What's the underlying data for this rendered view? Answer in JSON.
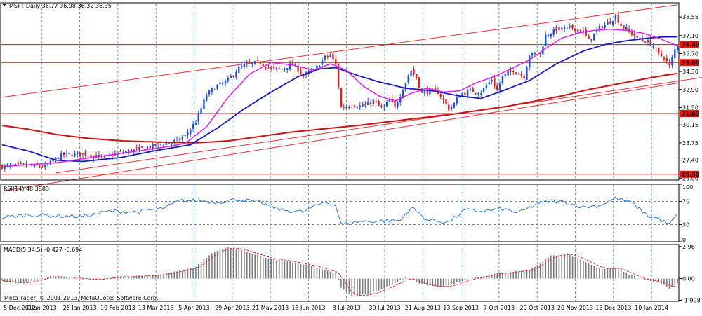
{
  "colors": {
    "bull": "#1d4fd8",
    "bear": "#e0201c",
    "ma_fast": "#e020e0",
    "ma_mid": "#1a1ab8",
    "ma_slow": "#cc1111",
    "channel": "#e03030",
    "level_line": "#d01010",
    "grid": "#2f7fd8",
    "rsi_line": "#1f6fd1",
    "macd_hist": "#7a7a7a",
    "macd_signal": "#e02020",
    "label_bg": "#e8140c"
  },
  "chart_data": [
    {
      "type": "candlestick",
      "title": "MSFT,Daily  36.77 36.98 36.32 36.35",
      "y_ticks": [
        "38.55",
        "37.10",
        "35.70",
        "34.30",
        "32.90",
        "31.50",
        "30.15",
        "28.75",
        "27.40",
        "26.00"
      ],
      "ylim": [
        25.85,
        39.65
      ],
      "x_labels": [
        "5 Dec 2012",
        "2 Jan 2013",
        "25 Jan 2013",
        "19 Feb 2013",
        "13 Mar 2013",
        "5 Apr 2013",
        "29 Apr 2013",
        "21 May 2013",
        "13 Jun 2013",
        "8 Jul 2013",
        "30 Jul 2013",
        "21 Aug 2013",
        "13 Sep 2013",
        "7 Oct 2013",
        "29 Oct 2013",
        "20 Nov 2013",
        "13 Dec 2013",
        "10 Jan 2014"
      ],
      "levels": [
        "36.40",
        "35.00",
        "31.03",
        "26.30"
      ],
      "price_anchors": [
        [
          0,
          26.9
        ],
        [
          8,
          27.0
        ],
        [
          16,
          26.9
        ],
        [
          22,
          27.8
        ],
        [
          30,
          27.9
        ],
        [
          38,
          27.6
        ],
        [
          44,
          28.0
        ],
        [
          50,
          28.2
        ],
        [
          60,
          28.7
        ],
        [
          65,
          28.9
        ],
        [
          68,
          29.3
        ],
        [
          72,
          30.4
        ],
        [
          76,
          32.5
        ],
        [
          80,
          33.2
        ],
        [
          84,
          33.6
        ],
        [
          88,
          34.6
        ],
        [
          92,
          34.9
        ],
        [
          96,
          35.0
        ],
        [
          100,
          34.5
        ],
        [
          104,
          34.5
        ],
        [
          108,
          34.9
        ],
        [
          112,
          34.0
        ],
        [
          116,
          34.4
        ],
        [
          120,
          35.4
        ],
        [
          122,
          35.6
        ],
        [
          124,
          34.8
        ],
        [
          126,
          31.5
        ],
        [
          130,
          31.7
        ],
        [
          134,
          31.6
        ],
        [
          138,
          32.0
        ],
        [
          140,
          31.6
        ],
        [
          142,
          31.5
        ],
        [
          144,
          32.1
        ],
        [
          146,
          31.5
        ],
        [
          150,
          33.5
        ],
        [
          152,
          34.4
        ],
        [
          154,
          33.8
        ],
        [
          156,
          32.6
        ],
        [
          158,
          32.8
        ],
        [
          162,
          32.7
        ],
        [
          166,
          31.4
        ],
        [
          168,
          31.8
        ],
        [
          170,
          32.5
        ],
        [
          174,
          32.8
        ],
        [
          178,
          32.7
        ],
        [
          182,
          33.7
        ],
        [
          184,
          32.8
        ],
        [
          186,
          33.9
        ],
        [
          190,
          34.4
        ],
        [
          194,
          33.9
        ],
        [
          196,
          35.6
        ],
        [
          200,
          35.7
        ],
        [
          202,
          37.1
        ],
        [
          206,
          37.6
        ],
        [
          208,
          37.6
        ],
        [
          212,
          37.7
        ],
        [
          216,
          37.4
        ],
        [
          218,
          36.7
        ],
        [
          222,
          37.7
        ],
        [
          226,
          38.2
        ],
        [
          228,
          38.6
        ],
        [
          230,
          37.9
        ],
        [
          232,
          37.6
        ],
        [
          236,
          36.9
        ],
        [
          240,
          36.6
        ],
        [
          242,
          36.3
        ],
        [
          244,
          35.6
        ],
        [
          246,
          35.4
        ],
        [
          248,
          34.7
        ],
        [
          250,
          36.0
        ],
        [
          251,
          36.4
        ]
      ],
      "ma_fast_anchors": [
        [
          0,
          26.9
        ],
        [
          20,
          27.2
        ],
        [
          40,
          27.8
        ],
        [
          60,
          28.4
        ],
        [
          68,
          28.7
        ],
        [
          76,
          30.0
        ],
        [
          84,
          32.3
        ],
        [
          92,
          34.1
        ],
        [
          100,
          35.0
        ],
        [
          108,
          34.8
        ],
        [
          116,
          34.4
        ],
        [
          122,
          34.9
        ],
        [
          128,
          34.4
        ],
        [
          134,
          33.2
        ],
        [
          140,
          32.4
        ],
        [
          146,
          32.0
        ],
        [
          152,
          32.6
        ],
        [
          158,
          33.0
        ],
        [
          164,
          32.7
        ],
        [
          170,
          32.8
        ],
        [
          176,
          33.4
        ],
        [
          184,
          34.0
        ],
        [
          190,
          34.6
        ],
        [
          196,
          35.2
        ],
        [
          202,
          36.1
        ],
        [
          208,
          36.9
        ],
        [
          214,
          37.3
        ],
        [
          220,
          37.5
        ],
        [
          226,
          37.6
        ],
        [
          232,
          37.5
        ],
        [
          238,
          37.3
        ],
        [
          244,
          36.9
        ],
        [
          251,
          36.3
        ]
      ],
      "ma_mid_anchors": [
        [
          0,
          28.6
        ],
        [
          10,
          28.1
        ],
        [
          20,
          27.4
        ],
        [
          30,
          27.3
        ],
        [
          44,
          27.6
        ],
        [
          56,
          28.1
        ],
        [
          70,
          28.6
        ],
        [
          80,
          29.9
        ],
        [
          90,
          31.4
        ],
        [
          100,
          32.7
        ],
        [
          110,
          33.9
        ],
        [
          118,
          34.5
        ],
        [
          124,
          34.6
        ],
        [
          132,
          34.0
        ],
        [
          140,
          33.5
        ],
        [
          150,
          33.0
        ],
        [
          160,
          32.8
        ],
        [
          170,
          32.4
        ],
        [
          178,
          32.2
        ],
        [
          186,
          32.8
        ],
        [
          196,
          33.6
        ],
        [
          206,
          34.9
        ],
        [
          216,
          35.9
        ],
        [
          224,
          36.4
        ],
        [
          232,
          36.7
        ],
        [
          240,
          36.9
        ],
        [
          246,
          37.0
        ],
        [
          251,
          37.0
        ]
      ],
      "ma_slow_anchors": [
        [
          0,
          30.1
        ],
        [
          10,
          29.8
        ],
        [
          20,
          29.4
        ],
        [
          32,
          29.1
        ],
        [
          45,
          28.9
        ],
        [
          60,
          28.8
        ],
        [
          72,
          28.75
        ],
        [
          84,
          28.9
        ],
        [
          96,
          29.25
        ],
        [
          108,
          29.6
        ],
        [
          120,
          29.85
        ],
        [
          132,
          30.1
        ],
        [
          144,
          30.4
        ],
        [
          156,
          30.7
        ],
        [
          168,
          31.0
        ],
        [
          178,
          31.3
        ],
        [
          188,
          31.6
        ],
        [
          198,
          32.0
        ],
        [
          208,
          32.4
        ],
        [
          218,
          32.9
        ],
        [
          228,
          33.3
        ],
        [
          238,
          33.7
        ],
        [
          246,
          34.0
        ],
        [
          251,
          34.15
        ]
      ],
      "channel_lines": [
        [
          [
            0,
            32.3
          ],
          [
            251,
            39.5
          ]
        ],
        [
          [
            20,
            26.4
          ],
          [
            272,
            34.2
          ]
        ],
        [
          [
            0,
            25.0
          ],
          [
            251,
            33.4
          ]
        ]
      ]
    },
    {
      "type": "line",
      "title": "RSI(14) 48.3883",
      "y_ticks": [
        "100",
        "70",
        "30",
        "0"
      ],
      "ylim": [
        0,
        100
      ],
      "levels": [
        70,
        30
      ],
      "anchors": [
        [
          0,
          42
        ],
        [
          10,
          47
        ],
        [
          20,
          45
        ],
        [
          30,
          44
        ],
        [
          40,
          53
        ],
        [
          50,
          52
        ],
        [
          60,
          58
        ],
        [
          66,
          71
        ],
        [
          72,
          72
        ],
        [
          80,
          69
        ],
        [
          88,
          74
        ],
        [
          96,
          68
        ],
        [
          104,
          55
        ],
        [
          112,
          52
        ],
        [
          120,
          70
        ],
        [
          124,
          63
        ],
        [
          126,
          30
        ],
        [
          132,
          35
        ],
        [
          140,
          36
        ],
        [
          148,
          37
        ],
        [
          152,
          60
        ],
        [
          158,
          38
        ],
        [
          166,
          34
        ],
        [
          172,
          55
        ],
        [
          178,
          53
        ],
        [
          186,
          57
        ],
        [
          192,
          50
        ],
        [
          198,
          64
        ],
        [
          204,
          71
        ],
        [
          210,
          68
        ],
        [
          216,
          60
        ],
        [
          222,
          63
        ],
        [
          228,
          76
        ],
        [
          234,
          68
        ],
        [
          240,
          45
        ],
        [
          244,
          40
        ],
        [
          248,
          30
        ],
        [
          251,
          48.4
        ]
      ]
    },
    {
      "type": "bar",
      "title": "MACD(5,34,5) -0.427 -0.694",
      "y_ticks": [
        "2.96",
        "0.00",
        "-1.998"
      ],
      "ylim": [
        -2.1,
        3.15
      ],
      "hist_anchors": [
        [
          0,
          -0.2
        ],
        [
          6,
          -0.45
        ],
        [
          12,
          -0.2
        ],
        [
          18,
          0.2
        ],
        [
          26,
          0.1
        ],
        [
          34,
          -0.1
        ],
        [
          42,
          0.15
        ],
        [
          50,
          0.2
        ],
        [
          58,
          0.35
        ],
        [
          66,
          0.7
        ],
        [
          72,
          1.1
        ],
        [
          78,
          2.4
        ],
        [
          84,
          2.9
        ],
        [
          90,
          2.6
        ],
        [
          98,
          1.9
        ],
        [
          106,
          1.6
        ],
        [
          114,
          1.2
        ],
        [
          120,
          0.8
        ],
        [
          124,
          0.6
        ],
        [
          126,
          -0.9
        ],
        [
          130,
          -1.6
        ],
        [
          136,
          -1.5
        ],
        [
          142,
          -0.9
        ],
        [
          150,
          0.1
        ],
        [
          156,
          -0.5
        ],
        [
          164,
          -0.8
        ],
        [
          172,
          -0.1
        ],
        [
          180,
          0.3
        ],
        [
          188,
          0.6
        ],
        [
          196,
          0.8
        ],
        [
          204,
          2.1
        ],
        [
          210,
          2.3
        ],
        [
          216,
          1.6
        ],
        [
          222,
          0.9
        ],
        [
          228,
          1.0
        ],
        [
          234,
          0.3
        ],
        [
          238,
          -0.1
        ],
        [
          244,
          -0.3
        ],
        [
          248,
          -0.9
        ],
        [
          251,
          -0.43
        ]
      ],
      "signal_lag": 4
    }
  ],
  "footer": {
    "copyright": "MetaTrader, © 2001-2013, MetaQuotes Software Corp."
  }
}
